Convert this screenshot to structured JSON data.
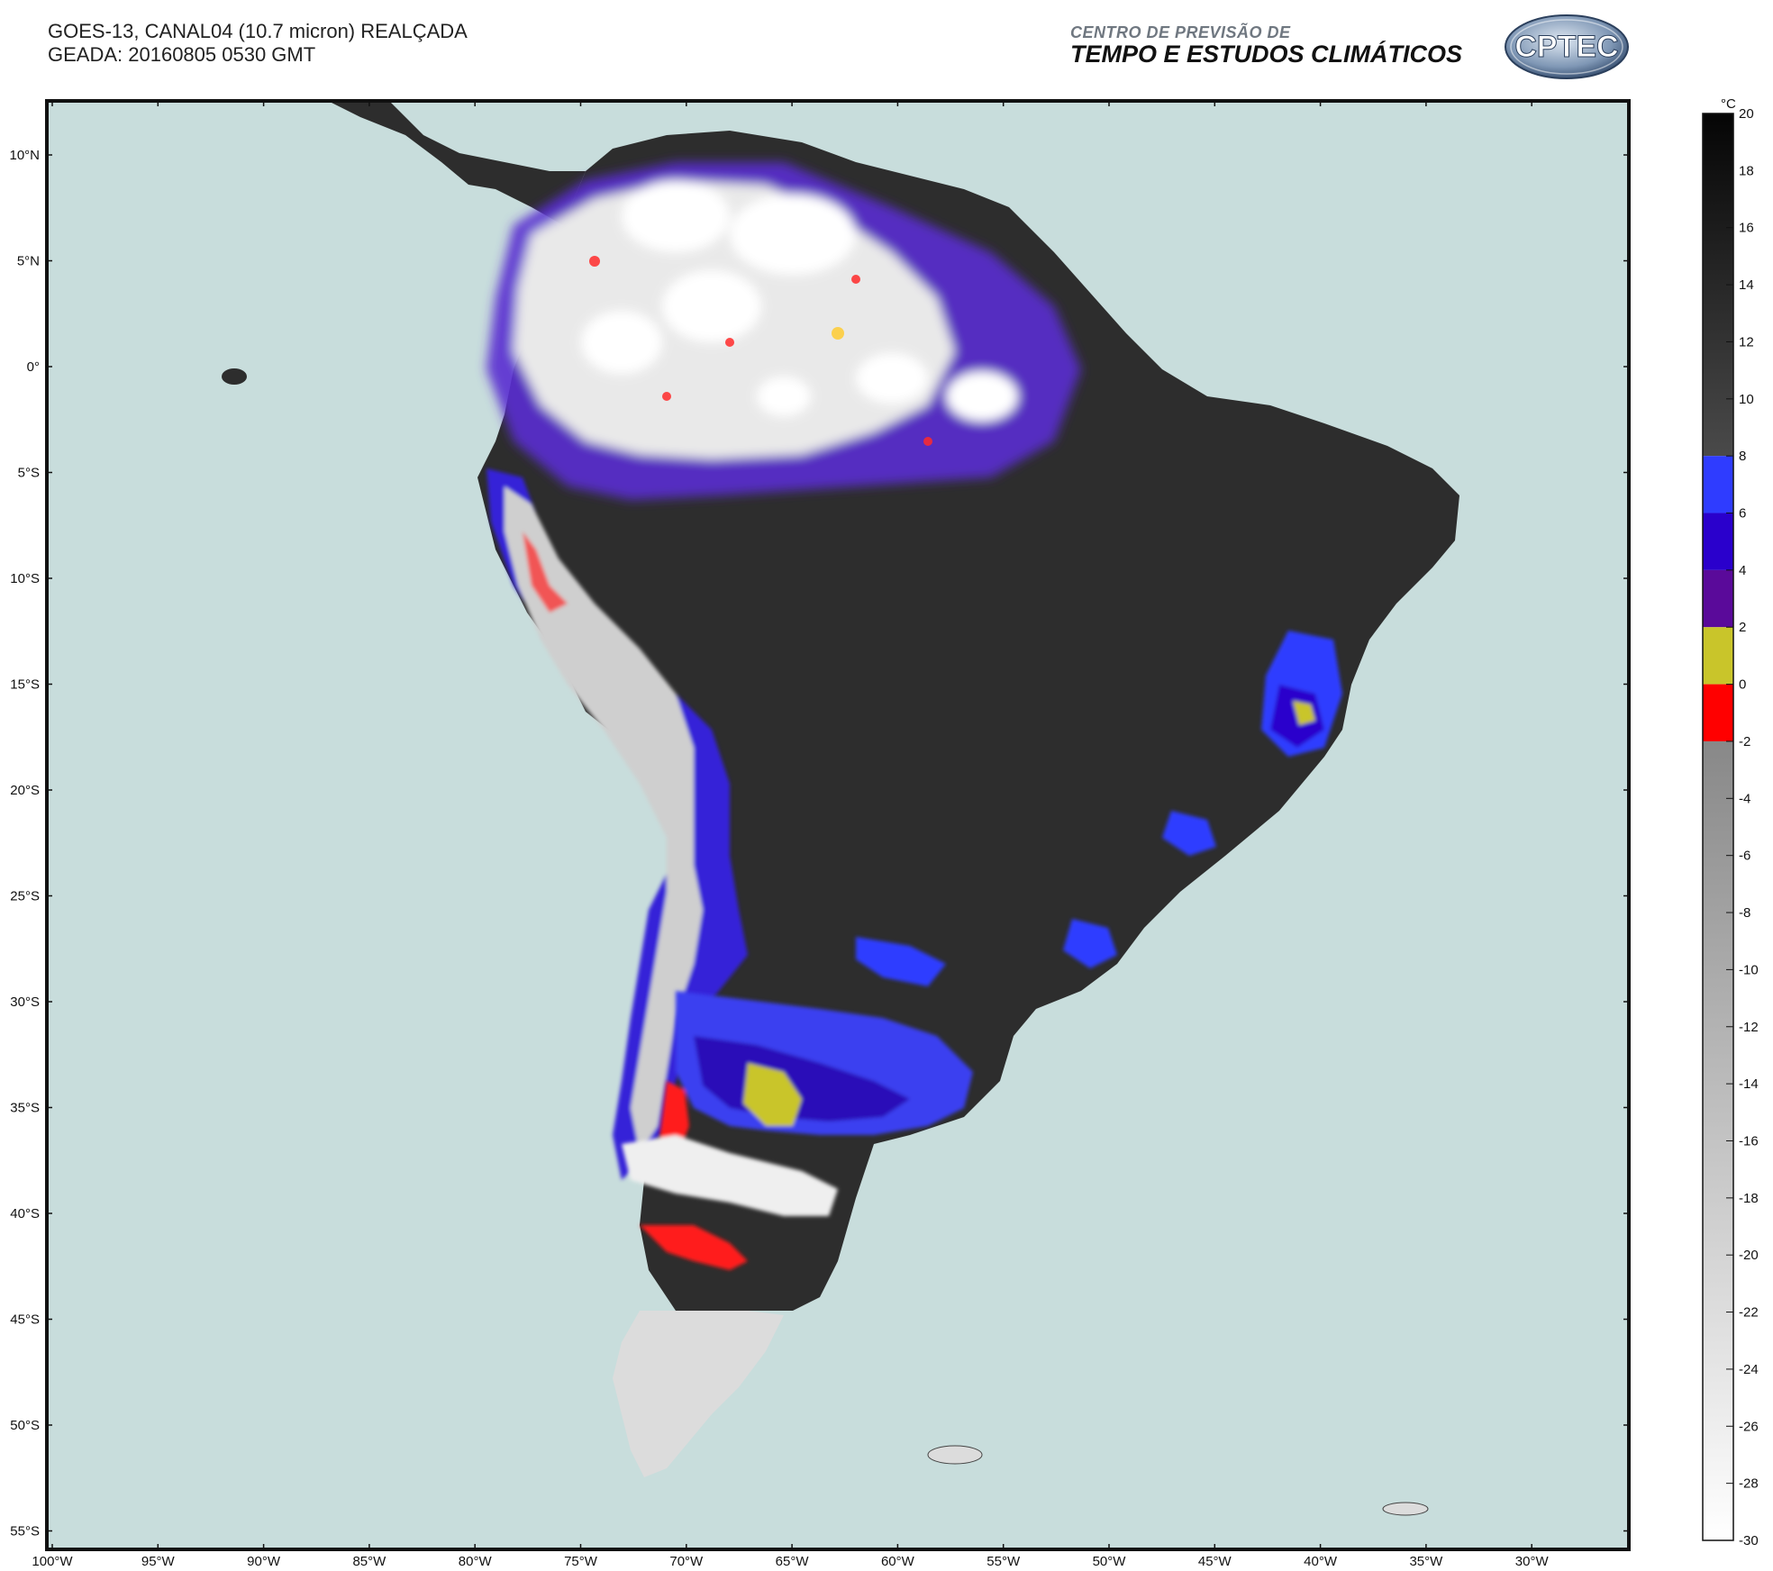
{
  "header": {
    "title_line1": "GOES-13, CANAL04 (10.7 micron) REALÇADA",
    "title_line2": "GEADA: 20160805 0530 GMT"
  },
  "org": {
    "line1": "CENTRO DE PREVISÃO DE",
    "line2": "TEMPO E ESTUDOS CLIMÁTICOS",
    "logo_text": "CPTEC"
  },
  "map": {
    "lat_labels": [
      "10°N",
      "5°N",
      "0°",
      "5°S",
      "10°S",
      "15°S",
      "20°S",
      "25°S",
      "30°S",
      "35°S",
      "40°S",
      "45°S",
      "50°S",
      "55°S"
    ],
    "lon_labels": [
      "100°W",
      "95°W",
      "90°W",
      "85°W",
      "80°W",
      "75°W",
      "70°W",
      "65°W",
      "60°W",
      "55°W",
      "50°W",
      "45°W",
      "40°W",
      "35°W",
      "30°W"
    ],
    "ocean_color": "#c8dddc",
    "land_color": "#2f2f2f"
  },
  "colorbar": {
    "unit": "°C",
    "ticks": [
      "20",
      "18",
      "16",
      "14",
      "12",
      "10",
      "8",
      "6",
      "4",
      "2",
      "0",
      "-2",
      "-4",
      "-6",
      "-8",
      "-10",
      "-12",
      "-14",
      "-16",
      "-18",
      "-20",
      "-22",
      "-24",
      "-26",
      "-28",
      "-30"
    ],
    "bands": [
      {
        "from": 20,
        "to": 8,
        "color": "gradient-black"
      },
      {
        "from": 8,
        "to": 6,
        "color": "#2f3cff"
      },
      {
        "from": 6,
        "to": 4,
        "color": "#2a00cc"
      },
      {
        "from": 4,
        "to": 2,
        "color": "#5a0a9a"
      },
      {
        "from": 2,
        "to": 0,
        "color": "#c9c52a"
      },
      {
        "from": 0,
        "to": -2,
        "color": "#ff0000"
      },
      {
        "from": -2,
        "to": -30,
        "color": "gradient-gray"
      }
    ]
  }
}
